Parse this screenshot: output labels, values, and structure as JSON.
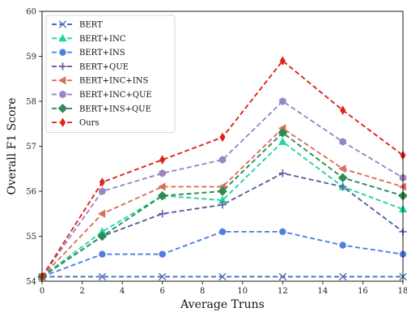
{
  "chart_data": {
    "type": "line",
    "xlabel": "Average Truns",
    "ylabel": "Overall F1 Score",
    "xlim": [
      0,
      18
    ],
    "ylim": [
      54,
      60
    ],
    "xticks": [
      0,
      2,
      4,
      6,
      8,
      10,
      12,
      14,
      16,
      18
    ],
    "yticks": [
      54,
      55,
      56,
      57,
      58,
      59,
      60
    ],
    "x": [
      0,
      3,
      6,
      9,
      12,
      15,
      18
    ],
    "legend_position": "top-left",
    "grid": false,
    "series": [
      {
        "name": "BERT",
        "color": "#4a6fb5",
        "marker": "x",
        "values": [
          54.1,
          54.1,
          54.1,
          54.1,
          54.1,
          54.1,
          54.1
        ]
      },
      {
        "name": "BERT+INC",
        "color": "#1fd6a0",
        "marker": "triangle",
        "values": [
          54.1,
          55.1,
          55.9,
          55.8,
          57.1,
          56.1,
          55.6
        ]
      },
      {
        "name": "BERT+INS",
        "color": "#4f7fe0",
        "marker": "circle",
        "values": [
          54.1,
          54.6,
          54.6,
          55.1,
          55.1,
          54.8,
          54.6
        ]
      },
      {
        "name": "BERT+QUE",
        "color": "#5a5fa0",
        "marker": "plus",
        "values": [
          54.1,
          55.0,
          55.5,
          55.7,
          56.4,
          56.1,
          55.1
        ]
      },
      {
        "name": "BERT+INC+INS",
        "color": "#d9705a",
        "marker": "triangle-left",
        "values": [
          54.1,
          55.5,
          56.1,
          56.1,
          57.4,
          56.5,
          56.1
        ]
      },
      {
        "name": "BERT+INC+QUE",
        "color": "#9b86c4",
        "marker": "hexagon",
        "values": [
          54.1,
          56.0,
          56.4,
          56.7,
          58.0,
          57.1,
          56.3
        ]
      },
      {
        "name": "BERT+INS+QUE",
        "color": "#2e8b57",
        "marker": "diamond",
        "values": [
          54.1,
          55.0,
          55.9,
          56.0,
          57.3,
          56.3,
          55.9
        ]
      },
      {
        "name": "Ours",
        "color": "#e02418",
        "marker": "thin-diamond",
        "values": [
          54.1,
          56.2,
          56.7,
          57.2,
          58.9,
          57.8,
          56.8
        ]
      }
    ]
  }
}
